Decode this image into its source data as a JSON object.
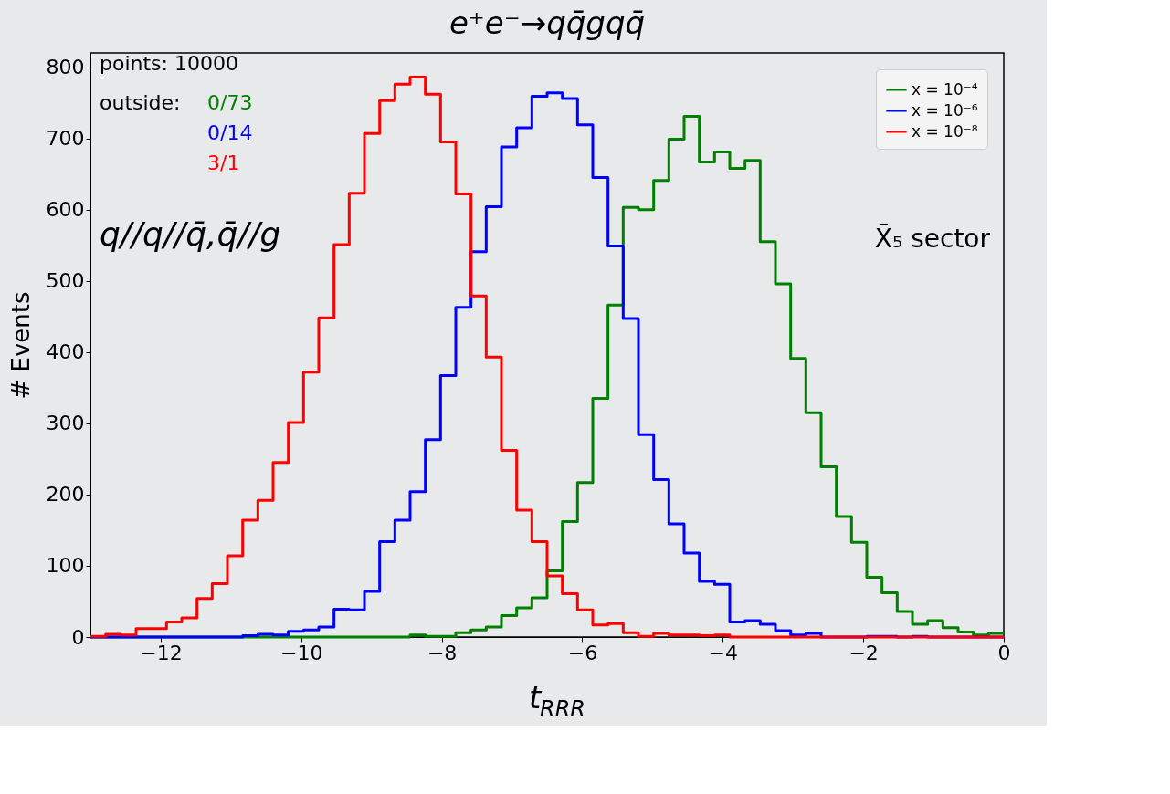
{
  "chart_data": {
    "type": "histogram",
    "title": "e⁺e⁻→qq̄gqq̄",
    "xlabel": "t$_{RRR}$",
    "ylabel": "# Events",
    "bins": [
      -13.0,
      -12.7833,
      -12.5667,
      -12.35,
      -12.1333,
      -11.9167,
      -11.7,
      -11.4833,
      -11.2667,
      -11.05,
      -10.8333,
      -10.6167,
      -10.4,
      -10.1833,
      -9.9667,
      -9.75,
      -9.5333,
      -9.3167,
      -9.1,
      -8.8833,
      -8.6667,
      -8.45,
      -8.2333,
      -8.0167,
      -7.8,
      -7.5833,
      -7.3667,
      -7.15,
      -6.9333,
      -6.7167,
      -6.5,
      -6.2833,
      -6.0667,
      -5.85,
      -5.6333,
      -5.4167,
      -5.2,
      -4.9833,
      -4.7667,
      -4.55,
      -4.3333,
      -4.1167,
      -3.9,
      -3.6833,
      -3.4667,
      -3.25,
      -3.0333,
      -2.8167,
      -2.6,
      -2.3833,
      -2.1667,
      -1.95,
      -1.7333,
      -1.5167,
      -1.3,
      -1.0833,
      -0.8667,
      -0.65,
      -0.4333,
      -0.2167,
      0.0
    ],
    "series": [
      {
        "name": "x = 10⁻⁴",
        "color": "#008000",
        "values": [
          0,
          0,
          0,
          0,
          0,
          0,
          0,
          0,
          0,
          0,
          0,
          0,
          0,
          0,
          0,
          0,
          0,
          0,
          0,
          0,
          0,
          3,
          1,
          1,
          6,
          10,
          14,
          30,
          41,
          55,
          93,
          162,
          217,
          335,
          466,
          603,
          600,
          641,
          699,
          731,
          667,
          681,
          658,
          669,
          555,
          496,
          391,
          315,
          239,
          169,
          133,
          84,
          62,
          36,
          18,
          23,
          13,
          7,
          3,
          5
        ]
      },
      {
        "name": "x = 10⁻⁶",
        "color": "#0000ff",
        "values": [
          0,
          0,
          0,
          0,
          0,
          0,
          0,
          0,
          0,
          0,
          2,
          4,
          3,
          8,
          10,
          14,
          39,
          38,
          64,
          134,
          164,
          204,
          277,
          367,
          463,
          541,
          604,
          688,
          715,
          759,
          764,
          756,
          719,
          645,
          549,
          447,
          284,
          221,
          159,
          118,
          78,
          74,
          21,
          23,
          18,
          9,
          3,
          5,
          0,
          0,
          0,
          1,
          1,
          0,
          1,
          0,
          0,
          0,
          0,
          0
        ]
      },
      {
        "name": "x = 10⁻⁸",
        "color": "#ff0000",
        "values": [
          1,
          4,
          3,
          12,
          12,
          21,
          27,
          54,
          75,
          114,
          164,
          192,
          245,
          301,
          372,
          448,
          551,
          623,
          707,
          753,
          776,
          786,
          762,
          695,
          622,
          479,
          393,
          262,
          178,
          134,
          86,
          61,
          38,
          17,
          19,
          6,
          1,
          5,
          3,
          3,
          2,
          3,
          0,
          0,
          0,
          0,
          0,
          0,
          0,
          0,
          0,
          0,
          0,
          0,
          0,
          0,
          0,
          0,
          0,
          0
        ]
      }
    ],
    "xlim": [
      -13,
      0
    ],
    "xticks": [
      -12,
      -10,
      -8,
      -6,
      -4,
      -2,
      0
    ],
    "ylim": [
      0,
      820
    ],
    "yticks": [
      0,
      100,
      200,
      300,
      400,
      500,
      600,
      700,
      800
    ],
    "annotations": [
      "points: 10000",
      "outside:",
      "0/73",
      "0/14",
      "3/1",
      "q//q//q̄,q̄//g",
      "X̄₅ sector"
    ],
    "legend": "top right",
    "grid": false,
    "line_style": "solid",
    "marker": "none"
  }
}
